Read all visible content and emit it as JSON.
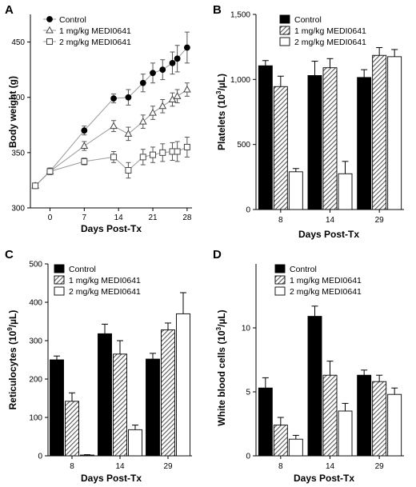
{
  "colors": {
    "control": "#000000",
    "dose1_hatch": "#555555",
    "dose2": "#ffffff",
    "line": "#9a9a9a",
    "error": "#555555"
  },
  "chart_data": [
    {
      "panel": "A",
      "type": "line",
      "xlabel": "Days Post-Tx",
      "ylabel": "Body weight (g)",
      "xlim": [
        -4,
        29
      ],
      "ylim": [
        300,
        475
      ],
      "xticks": [
        0,
        7,
        14,
        21,
        28
      ],
      "yticks": [
        300,
        350,
        400,
        450
      ],
      "legend_position": "top-left",
      "series": [
        {
          "name": "Control",
          "marker": "circle",
          "x": [
            -3,
            0,
            7,
            13,
            16,
            19,
            21,
            23,
            25,
            26,
            28
          ],
          "y": [
            320,
            333,
            370,
            399,
            400,
            413,
            422,
            425,
            431,
            435,
            445
          ],
          "err": [
            2,
            3,
            4,
            4,
            7,
            8,
            9,
            9,
            10,
            12,
            14
          ]
        },
        {
          "name": "1 mg/kg MEDI0641",
          "marker": "triangle",
          "x": [
            -3,
            0,
            7,
            13,
            16,
            19,
            21,
            23,
            25,
            26,
            28
          ],
          "y": [
            320,
            333,
            356,
            374,
            367,
            378,
            386,
            392,
            398,
            401,
            407
          ],
          "err": [
            2,
            3,
            4,
            5,
            6,
            6,
            6,
            6,
            6,
            6,
            6
          ]
        },
        {
          "name": "2 mg/kg MEDI0641",
          "marker": "square",
          "x": [
            -3,
            0,
            7,
            13,
            16,
            19,
            21,
            23,
            25,
            26,
            28
          ],
          "y": [
            320,
            333,
            342,
            346,
            334,
            346,
            348,
            350,
            351,
            351,
            355
          ],
          "err": [
            2,
            3,
            3,
            5,
            7,
            7,
            7,
            8,
            8,
            9,
            9
          ]
        }
      ]
    },
    {
      "panel": "B",
      "type": "bar",
      "xlabel": "Days Post-Tx",
      "ylabel": "Platelets (10",
      "ylabel_sup": "3",
      "ylabel_tail": "/µL)",
      "categories": [
        "8",
        "14",
        "29"
      ],
      "ylim": [
        0,
        1500
      ],
      "yticks": [
        0,
        500,
        1000,
        1500
      ],
      "ytick_labels": [
        "0",
        "500",
        "1,000",
        "1,500"
      ],
      "legend_position": "top-left",
      "series": [
        {
          "name": "Control",
          "values": [
            1105,
            1030,
            1015
          ],
          "err": [
            40,
            110,
            60
          ]
        },
        {
          "name": "1 mg/kg MEDI0641",
          "values": [
            945,
            1090,
            1185
          ],
          "err": [
            80,
            70,
            60
          ]
        },
        {
          "name": "2 mg/kg MEDI0641",
          "values": [
            290,
            275,
            1175
          ],
          "err": [
            25,
            95,
            55
          ]
        }
      ]
    },
    {
      "panel": "C",
      "type": "bar",
      "xlabel": "Days Post-Tx",
      "ylabel": "Reticulocytes (10",
      "ylabel_sup": "9",
      "ylabel_tail": "/µL)",
      "categories": [
        "8",
        "14",
        "29"
      ],
      "ylim": [
        0,
        500
      ],
      "yticks": [
        0,
        100,
        200,
        300,
        400,
        500
      ],
      "ytick_labels": [
        "0",
        "100",
        "200",
        "300",
        "400",
        "500"
      ],
      "legend_position": "top-left",
      "series": [
        {
          "name": "Control",
          "values": [
            250,
            318,
            252
          ],
          "err": [
            10,
            25,
            15
          ]
        },
        {
          "name": "1 mg/kg MEDI0641",
          "values": [
            142,
            265,
            328
          ],
          "err": [
            22,
            35,
            18
          ]
        },
        {
          "name": "2 mg/kg MEDI0641",
          "values": [
            2,
            68,
            370
          ],
          "err": [
            1,
            12,
            55
          ]
        }
      ]
    },
    {
      "panel": "D",
      "type": "bar",
      "xlabel": "Days Post-Tx",
      "ylabel": "White blood cells (10",
      "ylabel_sup": "3",
      "ylabel_tail": "/µL)",
      "categories": [
        "8",
        "14",
        "29"
      ],
      "ylim": [
        0,
        15
      ],
      "yticks": [
        0,
        5,
        10
      ],
      "ytick_labels": [
        "0",
        "5",
        "10"
      ],
      "legend_position": "top-left",
      "series": [
        {
          "name": "Control",
          "values": [
            5.3,
            10.9,
            6.3
          ],
          "err": [
            0.8,
            0.8,
            0.4
          ]
        },
        {
          "name": "1 mg/kg MEDI0641",
          "values": [
            2.4,
            6.3,
            5.8
          ],
          "err": [
            0.6,
            1.1,
            0.5
          ]
        },
        {
          "name": "2 mg/kg MEDI0641",
          "values": [
            1.3,
            3.5,
            4.8
          ],
          "err": [
            0.3,
            0.6,
            0.5
          ]
        }
      ]
    }
  ]
}
